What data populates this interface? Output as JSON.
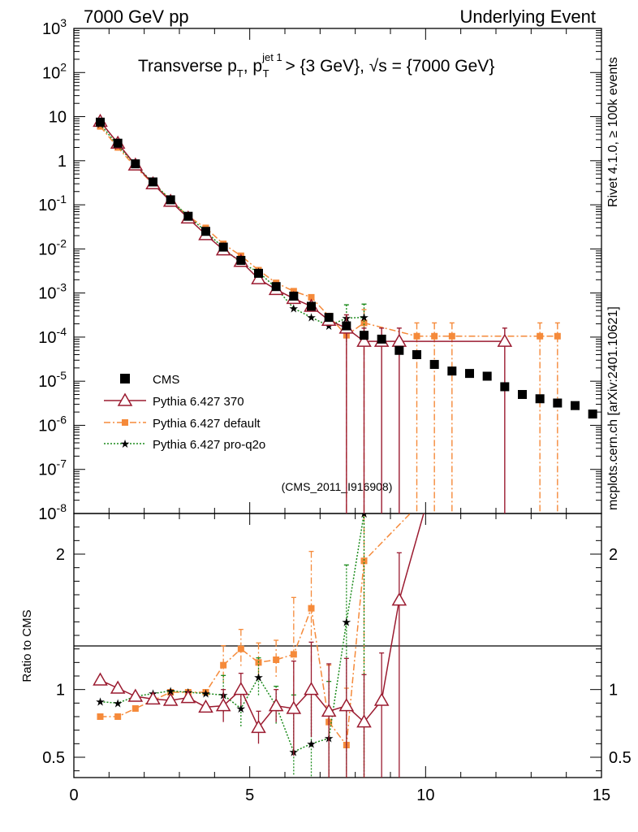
{
  "header": {
    "left": "7000 GeV pp",
    "right": "Underlying Event"
  },
  "title": {
    "main": "Transverse p",
    "sub_T": "T",
    "mid": ", p",
    "sup_jet": "jet 1",
    "sub_T2": "T",
    "rest": " > {3 GeV}, √s = {7000 GeV}"
  },
  "side_labels": {
    "rivet": "Rivet 4.1.0, ≥ 100k events",
    "mcplots": "mcplots.cern.ch [arXiv:2401.10621]"
  },
  "watermark": "(CMS_2011_I916908)",
  "ratio_ylabel": "Ratio to CMS",
  "colors": {
    "cms": "#000000",
    "p370": "#9b1b30",
    "default": "#f58a3a",
    "proq2o": "#1a8a1a"
  },
  "chart_data": {
    "type": "scatter",
    "main_panel": {
      "yscale": "log",
      "ylim": [
        1e-08,
        1000
      ],
      "ytick_labels": [
        "10^-8",
        "10^-7",
        "10^-6",
        "10^-5",
        "10^-4",
        "10^-3",
        "10^-2",
        "10^-1",
        "1",
        "10",
        "10^2",
        "10^3"
      ],
      "xlim": [
        0,
        15
      ]
    },
    "ratio_panel": {
      "ylim": [
        0.35,
        2.3
      ],
      "ytick_labels": [
        "0.5",
        "1",
        "2"
      ],
      "xlim": [
        0,
        15
      ],
      "xtick_labels": [
        "0",
        "5",
        "10",
        "15"
      ]
    },
    "legend": [
      {
        "key": "cms",
        "label": "CMS"
      },
      {
        "key": "p370",
        "label": "Pythia 6.427 370"
      },
      {
        "key": "default",
        "label": "Pythia 6.427 default"
      },
      {
        "key": "proq2o",
        "label": "Pythia 6.427 pro-q2o"
      }
    ],
    "series": {
      "cms": {
        "x": [
          0.75,
          1.25,
          1.75,
          2.25,
          2.75,
          3.25,
          3.75,
          4.25,
          4.75,
          5.25,
          5.75,
          6.25,
          6.75,
          7.25,
          7.75,
          8.25,
          8.75,
          9.25,
          9.75,
          10.25,
          10.75,
          11.25,
          11.75,
          12.25,
          12.75,
          13.25,
          13.75,
          14.25,
          14.75
        ],
        "y": [
          7.5,
          2.5,
          0.85,
          0.33,
          0.13,
          0.055,
          0.025,
          0.011,
          0.0055,
          0.0028,
          0.0014,
          0.00085,
          0.0005,
          0.00028,
          0.00018,
          0.00011,
          9e-05,
          5e-05,
          4e-05,
          2.4e-05,
          1.7e-05,
          1.5e-05,
          1.3e-05,
          7.5e-06,
          5e-06,
          4e-06,
          3.2e-06,
          2.8e-06,
          1.8e-06
        ]
      },
      "p370": {
        "x": [
          0.75,
          1.25,
          1.75,
          2.25,
          2.75,
          3.25,
          3.75,
          4.25,
          4.75,
          5.25,
          5.75,
          6.25,
          6.75,
          7.25,
          7.75,
          8.25,
          8.75,
          9.25,
          12.25
        ],
        "y": [
          7.8,
          2.5,
          0.8,
          0.3,
          0.12,
          0.05,
          0.021,
          0.0095,
          0.0052,
          0.0021,
          0.0012,
          0.00075,
          0.0005,
          0.00024,
          0.00016,
          8e-05,
          8e-05,
          8e-05,
          8e-05
        ]
      },
      "default": {
        "x": [
          0.75,
          1.25,
          1.75,
          2.25,
          2.75,
          3.25,
          3.75,
          4.25,
          4.75,
          5.25,
          5.75,
          6.25,
          6.75,
          7.25,
          7.75,
          8.25,
          9.75,
          10.25,
          10.75,
          13.25,
          13.75
        ],
        "y": [
          6.0,
          2.0,
          0.72,
          0.3,
          0.13,
          0.055,
          0.03,
          0.013,
          0.007,
          0.0033,
          0.0017,
          0.0011,
          0.0008,
          0.0003,
          0.00011,
          0.00021,
          0.000105,
          0.000105,
          0.000105,
          0.000105,
          0.000105
        ]
      },
      "proq2o": {
        "x": [
          0.75,
          1.25,
          1.75,
          2.25,
          2.75,
          3.25,
          3.75,
          4.25,
          4.75,
          5.25,
          5.75,
          6.25,
          6.75,
          7.25,
          7.75,
          8.25
        ],
        "y": [
          6.8,
          2.2,
          0.8,
          0.32,
          0.13,
          0.055,
          0.025,
          0.0105,
          0.0048,
          0.003,
          0.0013,
          0.00045,
          0.00028,
          0.00018,
          0.00027,
          0.00028
        ]
      }
    },
    "ratios": {
      "p370": {
        "x": [
          0.75,
          1.25,
          1.75,
          2.25,
          2.75,
          3.25,
          3.75,
          4.25,
          4.75,
          5.25,
          5.75,
          6.25,
          6.75,
          7.25,
          7.75,
          8.25,
          8.75,
          9.25,
          10.0
        ],
        "y": [
          1.07,
          1.01,
          0.95,
          0.93,
          0.92,
          0.94,
          0.87,
          0.88,
          1.0,
          0.72,
          0.88,
          0.86,
          1.0,
          0.84,
          0.88,
          0.76,
          0.92,
          1.66,
          2.35
        ]
      },
      "default": {
        "x": [
          0.75,
          1.25,
          1.75,
          2.25,
          2.75,
          3.25,
          3.75,
          4.25,
          4.75,
          5.25,
          5.75,
          6.25,
          6.75,
          7.25,
          7.75,
          8.25,
          9.75
        ],
        "y": [
          0.8,
          0.8,
          0.86,
          0.92,
          0.98,
          0.98,
          0.98,
          1.18,
          1.3,
          1.2,
          1.22,
          1.26,
          1.6,
          0.76,
          0.59,
          1.95,
          2.35
        ]
      },
      "proq2o": {
        "x": [
          0.75,
          1.25,
          1.75,
          2.25,
          2.75,
          3.25,
          3.75,
          4.25,
          4.75,
          5.25,
          5.75,
          6.25,
          6.75,
          7.25,
          7.75,
          8.25
        ],
        "y": [
          0.91,
          0.9,
          0.95,
          0.97,
          0.99,
          0.98,
          0.97,
          0.96,
          0.86,
          1.09,
          0.88,
          0.54,
          0.6,
          0.64,
          1.5,
          2.3
        ]
      }
    }
  }
}
